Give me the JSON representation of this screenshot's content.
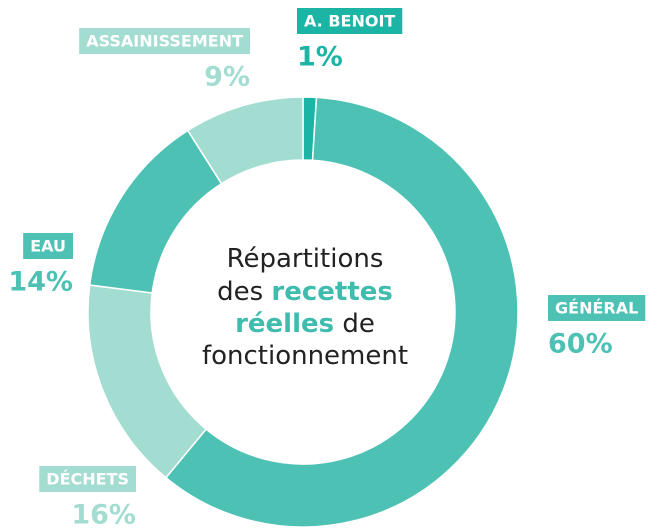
{
  "chart_data": {
    "type": "donut",
    "categories": [
      "A. BENOIT",
      "GÉNÉRAL",
      "DÉCHETS",
      "EAU",
      "ASSAINISSEMENT"
    ],
    "values": [
      1,
      60,
      16,
      14,
      9
    ],
    "value_labels": [
      "1%",
      "60%",
      "16%",
      "14%",
      "9%"
    ],
    "colors": [
      "#1cb5a5",
      "#4dc2b4",
      "#a3dcd0",
      "#4dc2b4",
      "#a3dcd0"
    ],
    "center_text": [
      "Répartitions",
      "des",
      "recettes",
      "réelles",
      "de",
      "fonctionnement"
    ]
  }
}
